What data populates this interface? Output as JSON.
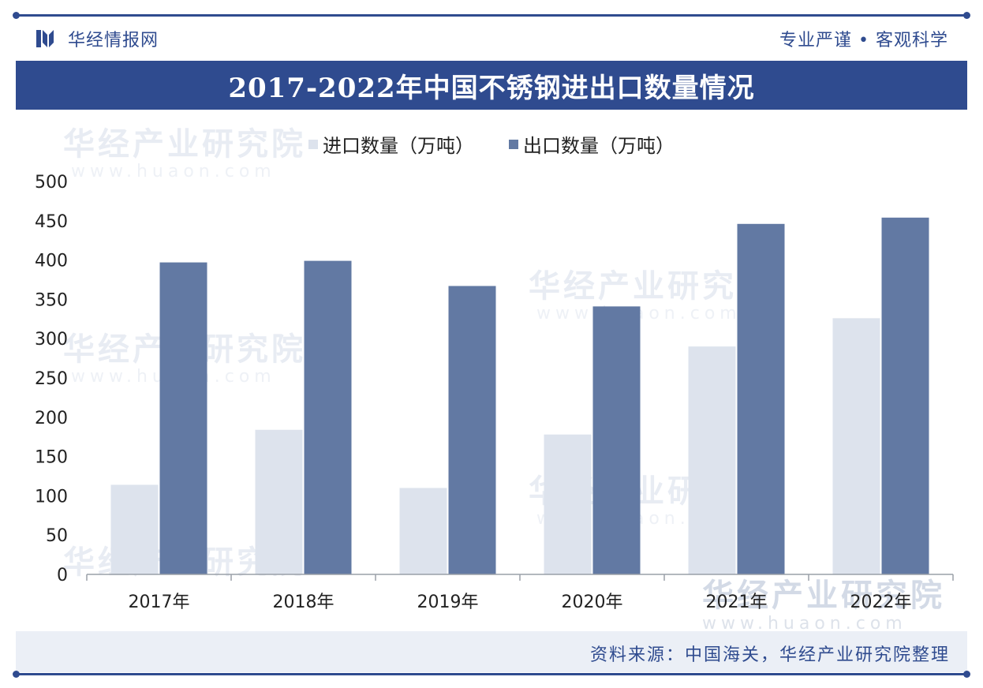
{
  "header": {
    "brand_name": "华经情报网",
    "slogan": "专业严谨 • 客观科学",
    "title": "2017-2022年中国不锈钢进出口数量情况"
  },
  "watermark": {
    "text": "华经产业研究院",
    "url": "www.huaon.com"
  },
  "colors": {
    "brand": "#2f4b8f",
    "import_bar": "#dde3ed",
    "export_bar": "#6279a3"
  },
  "chart_data": {
    "type": "bar",
    "categories": [
      "2017年",
      "2018年",
      "2019年",
      "2020年",
      "2021年",
      "2022年"
    ],
    "series": [
      {
        "name": "进口数量（万吨）",
        "values": [
          114,
          184,
          110,
          178,
          290,
          326
        ],
        "color": "#dde3ed"
      },
      {
        "name": "出口数量（万吨）",
        "values": [
          397,
          399,
          367,
          341,
          446,
          454
        ],
        "color": "#6279a3"
      }
    ],
    "ylim": [
      0,
      500
    ],
    "yticks": [
      "0",
      "50",
      "100",
      "150",
      "200",
      "250",
      "300",
      "350",
      "400",
      "450",
      "500"
    ],
    "legend_position": "top-center",
    "grid": false
  },
  "footer": {
    "source": "资料来源：中国海关，华经产业研究院整理"
  }
}
